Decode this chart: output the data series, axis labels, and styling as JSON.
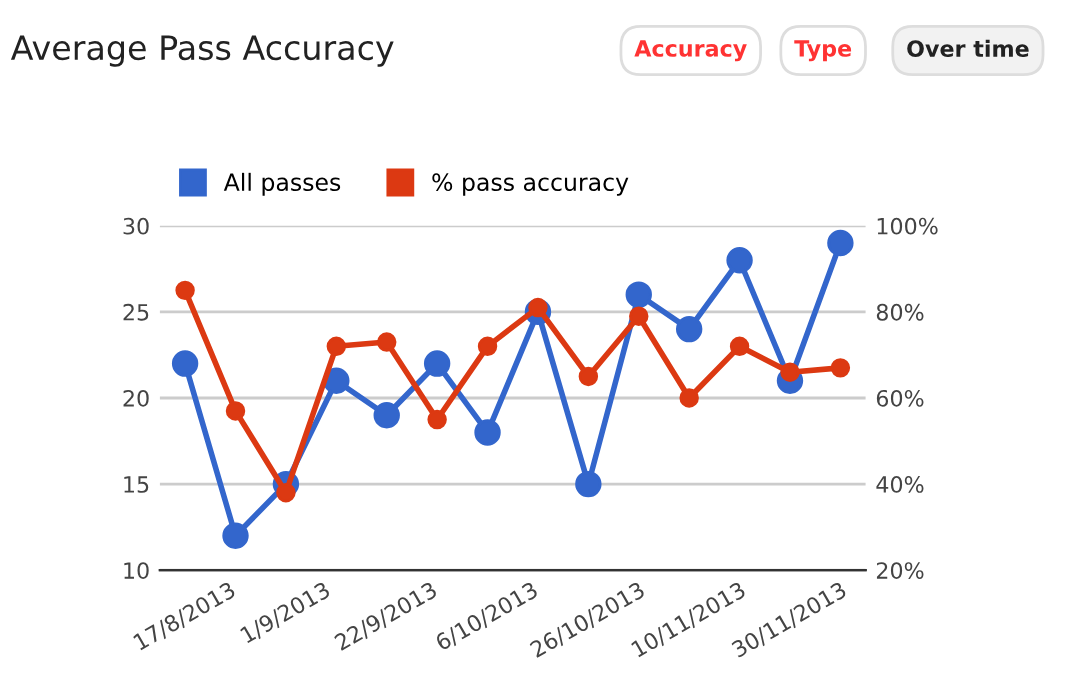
{
  "chart_data": {
    "type": "line",
    "title": "Average Pass Accuracy",
    "annotations": [
      "Accuracy",
      "Type",
      "Over time"
    ],
    "categories": [
      "17/8/2013",
      null,
      "1/9/2013",
      null,
      "22/9/2013",
      null,
      "6/10/2013",
      null,
      "26/10/2013",
      null,
      "10/11/2013",
      null,
      "30/11/2013",
      null
    ],
    "series": [
      {
        "name": "All passes",
        "color": "#3366cc",
        "values": [
          22,
          12,
          15,
          21,
          19,
          22,
          18,
          25,
          15,
          26,
          24,
          28,
          21,
          29
        ]
      },
      {
        "name": "% pass accuracy",
        "color": "#dc3912",
        "axis": "y2",
        "values": [
          85,
          57,
          38,
          72,
          73,
          55,
          72,
          81,
          65,
          79,
          60,
          72,
          66,
          67
        ]
      }
    ],
    "ylim": [
      10,
      30
    ],
    "yticks": [
      10,
      15,
      20,
      25,
      30
    ],
    "y2lim": [
      20,
      100
    ],
    "y2ticks": [
      {
        "value": 20,
        "label": "20%"
      },
      {
        "value": 40,
        "label": "40%"
      },
      {
        "value": 60,
        "label": "60%"
      },
      {
        "value": 80,
        "label": "80%"
      },
      {
        "value": 100,
        "label": "100%"
      }
    ],
    "grid": "y",
    "legend": "top left",
    "marker": "circle",
    "line_style": "solid"
  }
}
